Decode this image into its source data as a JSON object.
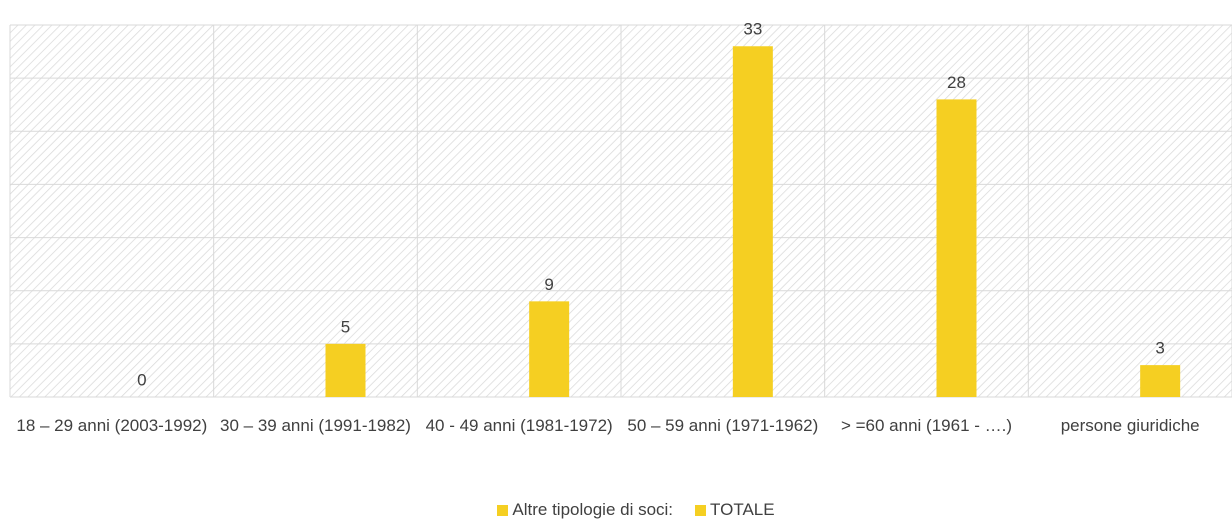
{
  "chart_data": {
    "type": "bar",
    "categories": [
      "18 – 29 anni (2003-1992)",
      "30 – 39 anni (1991-1982)",
      "40 - 49 anni (1981-1972)",
      "50 – 59 anni (1971-1962)",
      "> =60 anni (1961 - ….)",
      "persone giuridiche"
    ],
    "series": [
      {
        "name": "Altre tipologie di soci:",
        "color": "#f5cf22",
        "values": [
          null,
          null,
          null,
          null,
          null,
          null
        ]
      },
      {
        "name": "TOTALE",
        "color": "#f5cf22",
        "values": [
          0,
          5,
          9,
          33,
          28,
          3
        ]
      }
    ],
    "ylim": [
      0,
      35
    ],
    "yticks": [
      0,
      5,
      10,
      15,
      20,
      25,
      30,
      35
    ],
    "grid": true,
    "legend": "bottom"
  }
}
